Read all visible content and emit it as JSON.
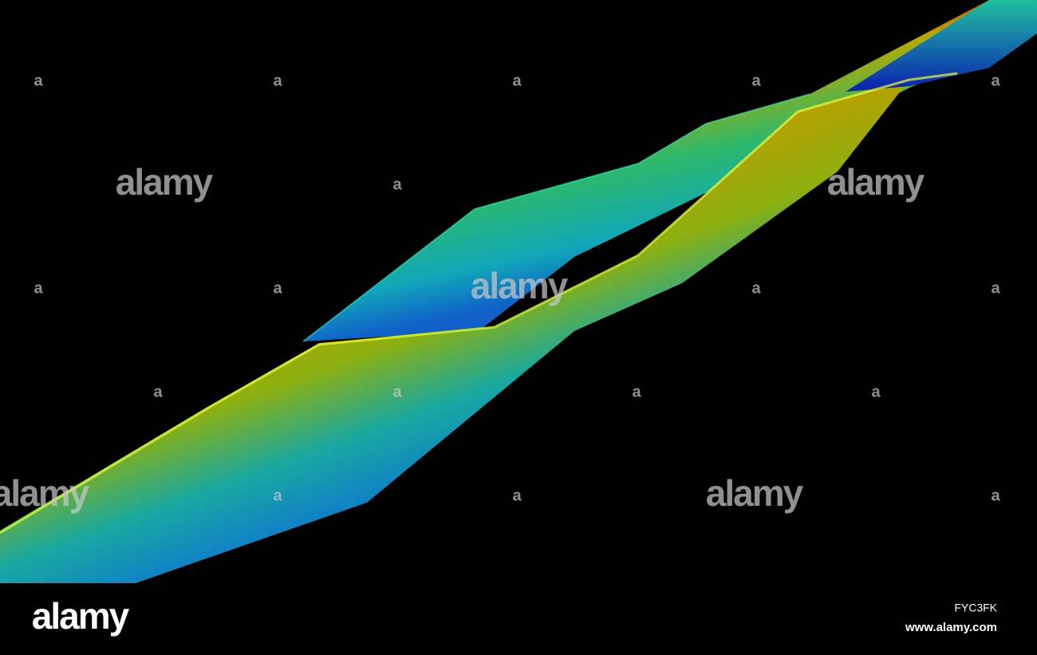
{
  "watermark_large": [
    "alamy",
    "alamy",
    "alamy",
    "alamy",
    "alamy"
  ],
  "watermark_small": [
    "a",
    "a",
    "a",
    "a",
    "a",
    "a",
    "a",
    "a",
    "a",
    "a",
    "a",
    "a",
    "a",
    "a",
    "a",
    "a",
    "a"
  ],
  "footer": {
    "logo": "alamy",
    "image_id": "FYC3FK",
    "site": "www.alamy.com"
  }
}
